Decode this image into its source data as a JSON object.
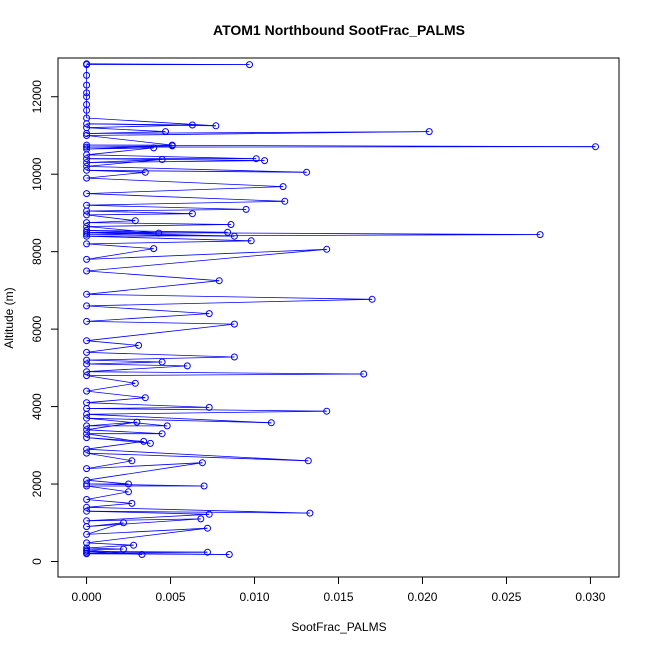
{
  "chart_data": {
    "type": "scatter",
    "title": "ATOM1 Northbound SootFrac_PALMS",
    "xlabel": "SootFrac_PALMS",
    "ylabel": "Altitude (m)",
    "xlim": [
      -0.0017,
      0.0317
    ],
    "ylim": [
      -400,
      13000
    ],
    "x_ticks": [
      0.0,
      0.005,
      0.01,
      0.015,
      0.02,
      0.025,
      0.03
    ],
    "x_tick_labels": [
      "0.000",
      "0.005",
      "0.010",
      "0.015",
      "0.020",
      "0.025",
      "0.030"
    ],
    "y_ticks": [
      0,
      2000,
      4000,
      6000,
      8000,
      10000,
      12000
    ],
    "y_tick_labels": [
      "0",
      "2000",
      "4000",
      "6000",
      "8000",
      "10000",
      "12000"
    ],
    "grid": false,
    "legend": "none",
    "series_color": "#0000ff",
    "points": [
      [
        0.0,
        200
      ],
      [
        0.0085,
        180
      ],
      [
        0.0,
        220
      ],
      [
        0.0072,
        240
      ],
      [
        0.0,
        260
      ],
      [
        0.0033,
        180
      ],
      [
        0.0,
        300
      ],
      [
        0.0022,
        320
      ],
      [
        0.0,
        350
      ],
      [
        0.0028,
        420
      ],
      [
        0.0,
        480
      ],
      [
        0.0072,
        860
      ],
      [
        0.0,
        700
      ],
      [
        0.0022,
        1000
      ],
      [
        0.0,
        900
      ],
      [
        0.0068,
        1100
      ],
      [
        0.0,
        1050
      ],
      [
        0.0073,
        1220
      ],
      [
        0.0,
        1300
      ],
      [
        0.0133,
        1250
      ],
      [
        0.0,
        1400
      ],
      [
        0.0027,
        1500
      ],
      [
        0.0,
        1600
      ],
      [
        0.0025,
        1800
      ],
      [
        0.0,
        1950
      ],
      [
        0.007,
        1950
      ],
      [
        0.0,
        2000
      ],
      [
        0.0025,
        2000
      ],
      [
        0.0,
        2100
      ],
      [
        0.0069,
        2550
      ],
      [
        0.0,
        2400
      ],
      [
        0.0027,
        2600
      ],
      [
        0.0,
        2800
      ],
      [
        0.0132,
        2600
      ],
      [
        0.0,
        2900
      ],
      [
        0.0034,
        3100
      ],
      [
        0.0,
        3200
      ],
      [
        0.0038,
        3050
      ],
      [
        0.0,
        3300
      ],
      [
        0.0045,
        3300
      ],
      [
        0.0,
        3400
      ],
      [
        0.003,
        3600
      ],
      [
        0.0,
        3500
      ],
      [
        0.0048,
        3500
      ],
      [
        0.0,
        3700
      ],
      [
        0.011,
        3580
      ],
      [
        0.0,
        3800
      ],
      [
        0.0143,
        3880
      ],
      [
        0.0,
        3950
      ],
      [
        0.0073,
        3980
      ],
      [
        0.0,
        4100
      ],
      [
        0.0035,
        4230
      ],
      [
        0.0,
        4400
      ],
      [
        0.0029,
        4600
      ],
      [
        0.0,
        4800
      ],
      [
        0.0165,
        4840
      ],
      [
        0.0,
        4900
      ],
      [
        0.006,
        5050
      ],
      [
        0.0,
        5100
      ],
      [
        0.0045,
        5150
      ],
      [
        0.0,
        5200
      ],
      [
        0.0088,
        5280
      ],
      [
        0.0,
        5400
      ],
      [
        0.0031,
        5580
      ],
      [
        0.0,
        5700
      ],
      [
        0.0088,
        6130
      ],
      [
        0.0,
        6200
      ],
      [
        0.0073,
        6400
      ],
      [
        0.0,
        6600
      ],
      [
        0.017,
        6770
      ],
      [
        0.0,
        6900
      ],
      [
        0.0079,
        7250
      ],
      [
        0.0,
        7500
      ],
      [
        0.0143,
        8060
      ],
      [
        0.0,
        7800
      ],
      [
        0.004,
        8080
      ],
      [
        0.0,
        8200
      ],
      [
        0.0098,
        8280
      ],
      [
        0.0,
        8400
      ],
      [
        0.027,
        8440
      ],
      [
        0.0,
        8500
      ],
      [
        0.0088,
        8400
      ],
      [
        0.0,
        8450
      ],
      [
        0.0084,
        8500
      ],
      [
        0.0,
        8550
      ],
      [
        0.0043,
        8480
      ],
      [
        0.0,
        8650
      ],
      [
        0.0086,
        8700
      ],
      [
        0.0,
        8750
      ],
      [
        0.0029,
        8800
      ],
      [
        0.0,
        8950
      ],
      [
        0.0063,
        8980
      ],
      [
        0.0,
        9050
      ],
      [
        0.0095,
        9090
      ],
      [
        0.0,
        9200
      ],
      [
        0.0118,
        9300
      ],
      [
        0.0,
        9500
      ],
      [
        0.0117,
        9680
      ],
      [
        0.0,
        9900
      ],
      [
        0.0035,
        10050
      ],
      [
        0.0,
        10100
      ],
      [
        0.0131,
        10050
      ],
      [
        0.0,
        10200
      ],
      [
        0.0045,
        10380
      ],
      [
        0.0,
        10300
      ],
      [
        0.0106,
        10350
      ],
      [
        0.0,
        10400
      ],
      [
        0.0101,
        10400
      ],
      [
        0.0,
        10500
      ],
      [
        0.004,
        10680
      ],
      [
        0.0,
        10650
      ],
      [
        0.0051,
        10730
      ],
      [
        0.0,
        10700
      ],
      [
        0.0303,
        10710
      ],
      [
        0.0,
        10750
      ],
      [
        0.0051,
        10750
      ],
      [
        0.0,
        11000
      ],
      [
        0.0204,
        11100
      ],
      [
        0.0,
        11050
      ],
      [
        0.0047,
        11100
      ],
      [
        0.0,
        11200
      ],
      [
        0.0063,
        11270
      ],
      [
        0.0,
        11300
      ],
      [
        0.0077,
        11250
      ],
      [
        0.0,
        11450
      ],
      [
        0.0,
        11650
      ],
      [
        0.0,
        11800
      ],
      [
        0.0,
        12000
      ],
      [
        0.0,
        12100
      ],
      [
        0.0,
        12300
      ],
      [
        0.0,
        12550
      ],
      [
        0.0,
        12830
      ],
      [
        0.0097,
        12830
      ],
      [
        0.0,
        12850
      ]
    ]
  }
}
